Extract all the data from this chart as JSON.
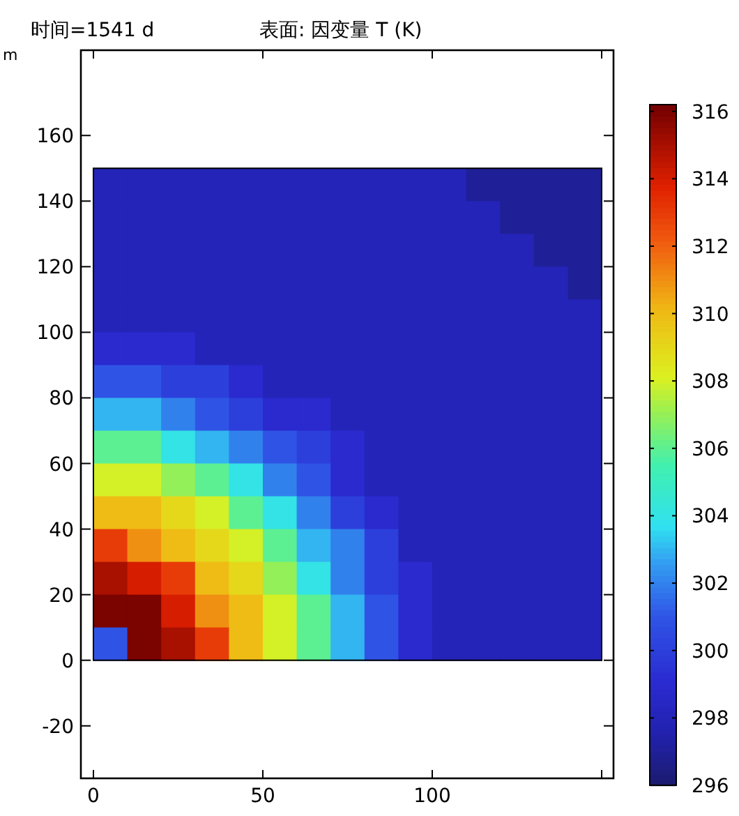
{
  "chart_data": {
    "type": "heatmap",
    "title": "表面: 因变量 T (K)",
    "subtitle": "时间=1541 d",
    "ylabel": "m",
    "x": [
      5,
      15,
      25,
      35,
      45,
      55,
      65,
      75,
      85,
      95,
      105,
      115,
      125,
      135,
      145
    ],
    "y": [
      145,
      135,
      125,
      115,
      105,
      95,
      85,
      75,
      65,
      55,
      45,
      35,
      25,
      15,
      5
    ],
    "cells": [
      [
        298,
        298,
        298,
        298,
        298,
        298,
        298,
        298,
        298,
        298,
        298,
        297,
        297,
        297,
        297
      ],
      [
        298,
        298,
        298,
        298,
        298,
        298,
        298,
        298,
        298,
        298,
        298,
        298,
        297,
        297,
        297
      ],
      [
        298,
        298,
        298,
        298,
        298,
        298,
        298,
        298,
        298,
        298,
        298,
        298,
        298,
        297,
        297
      ],
      [
        298,
        298,
        298,
        298,
        298,
        298,
        298,
        298,
        298,
        298,
        298,
        298,
        298,
        298,
        297
      ],
      [
        298,
        298,
        298,
        298,
        298,
        298,
        298,
        298,
        298,
        298,
        298,
        298,
        298,
        298,
        298
      ],
      [
        299,
        299,
        299,
        298,
        298,
        298,
        298,
        298,
        298,
        298,
        298,
        298,
        298,
        298,
        298
      ],
      [
        301,
        301,
        300,
        300,
        299,
        298,
        298,
        298,
        298,
        298,
        298,
        298,
        298,
        298,
        298
      ],
      [
        303,
        303,
        302,
        301,
        300,
        299,
        299,
        298,
        298,
        298,
        298,
        298,
        298,
        298,
        298
      ],
      [
        306,
        306,
        304,
        303,
        302,
        301,
        300,
        299,
        298,
        298,
        298,
        298,
        298,
        298,
        298
      ],
      [
        308,
        308,
        307,
        306,
        304,
        302,
        301,
        299,
        298,
        298,
        298,
        298,
        298,
        298,
        298
      ],
      [
        310,
        310,
        309,
        308,
        306,
        304,
        302,
        300,
        299,
        298,
        298,
        298,
        298,
        298,
        298
      ],
      [
        313,
        311,
        310,
        309,
        308,
        306,
        303,
        302,
        300,
        298,
        298,
        298,
        298,
        298,
        298
      ],
      [
        315,
        314,
        313,
        310,
        309,
        307,
        304,
        302,
        300,
        299,
        298,
        298,
        298,
        298,
        298
      ],
      [
        316,
        316,
        314,
        311,
        310,
        308,
        306,
        303,
        301,
        299,
        298,
        298,
        298,
        298,
        298
      ],
      [
        301,
        316,
        315,
        313,
        310,
        308,
        306,
        303,
        301,
        299,
        298,
        298,
        298,
        298,
        298
      ]
    ],
    "xlim": [
      -3.7,
      153.5
    ],
    "ylim": [
      -36,
      186
    ],
    "xticks": [
      0,
      50,
      100,
      {
        "value": 150,
        "label": null
      }
    ],
    "yticks": [
      -20,
      0,
      20,
      40,
      60,
      80,
      100,
      120,
      140,
      160
    ],
    "clim": [
      296,
      316.2
    ],
    "cticks": [
      296,
      298,
      300,
      302,
      304,
      306,
      308,
      310,
      312,
      314,
      316
    ],
    "grid": false
  }
}
